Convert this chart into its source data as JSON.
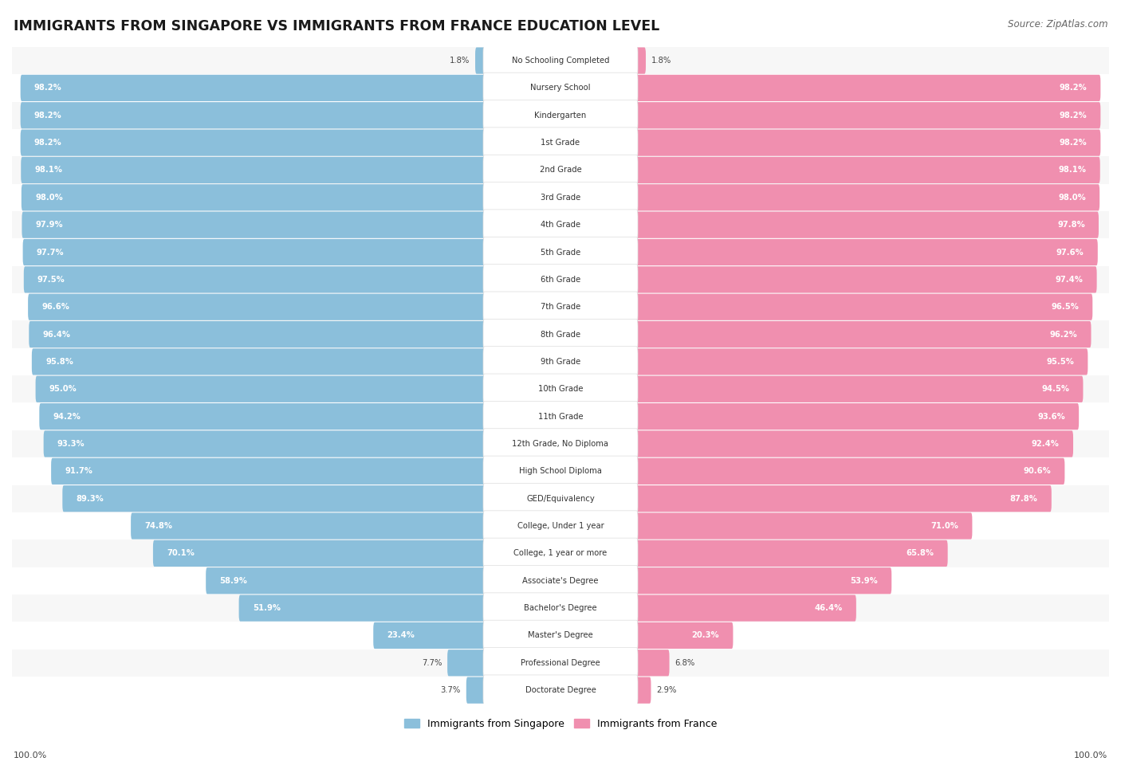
{
  "title": "IMMIGRANTS FROM SINGAPORE VS IMMIGRANTS FROM FRANCE EDUCATION LEVEL",
  "source": "Source: ZipAtlas.com",
  "categories": [
    "No Schooling Completed",
    "Nursery School",
    "Kindergarten",
    "1st Grade",
    "2nd Grade",
    "3rd Grade",
    "4th Grade",
    "5th Grade",
    "6th Grade",
    "7th Grade",
    "8th Grade",
    "9th Grade",
    "10th Grade",
    "11th Grade",
    "12th Grade, No Diploma",
    "High School Diploma",
    "GED/Equivalency",
    "College, Under 1 year",
    "College, 1 year or more",
    "Associate's Degree",
    "Bachelor's Degree",
    "Master's Degree",
    "Professional Degree",
    "Doctorate Degree"
  ],
  "singapore": [
    1.8,
    98.2,
    98.2,
    98.2,
    98.1,
    98.0,
    97.9,
    97.7,
    97.5,
    96.6,
    96.4,
    95.8,
    95.0,
    94.2,
    93.3,
    91.7,
    89.3,
    74.8,
    70.1,
    58.9,
    51.9,
    23.4,
    7.7,
    3.7
  ],
  "france": [
    1.8,
    98.2,
    98.2,
    98.2,
    98.1,
    98.0,
    97.8,
    97.6,
    97.4,
    96.5,
    96.2,
    95.5,
    94.5,
    93.6,
    92.4,
    90.6,
    87.8,
    71.0,
    65.8,
    53.9,
    46.4,
    20.3,
    6.8,
    2.9
  ],
  "singapore_color": "#8bbfdb",
  "france_color": "#f08faf",
  "legend_singapore": "Immigrants from Singapore",
  "legend_france": "Immigrants from France",
  "row_bg_light": "#f7f7f7",
  "row_bg_white": "#ffffff"
}
